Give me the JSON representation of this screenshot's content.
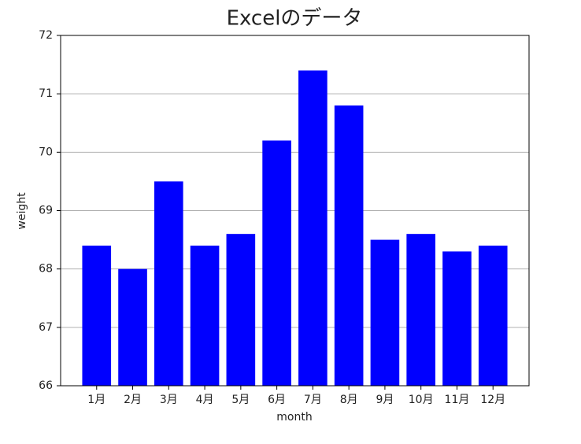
{
  "chart_data": {
    "type": "bar",
    "title": "Excelのデータ",
    "x_label": "month",
    "y_label": "weight",
    "categories": [
      "1月",
      "2月",
      "3月",
      "4月",
      "5月",
      "6月",
      "7月",
      "8月",
      "9月",
      "10月",
      "11月",
      "12月"
    ],
    "values": [
      68.4,
      68.0,
      69.5,
      68.4,
      68.6,
      70.2,
      71.4,
      70.8,
      68.5,
      68.6,
      68.3,
      68.4
    ],
    "color": "#0000ff",
    "ylim": [
      66,
      72
    ],
    "yticks": [
      66,
      67,
      68,
      69,
      70,
      71,
      72
    ],
    "grid": true
  }
}
